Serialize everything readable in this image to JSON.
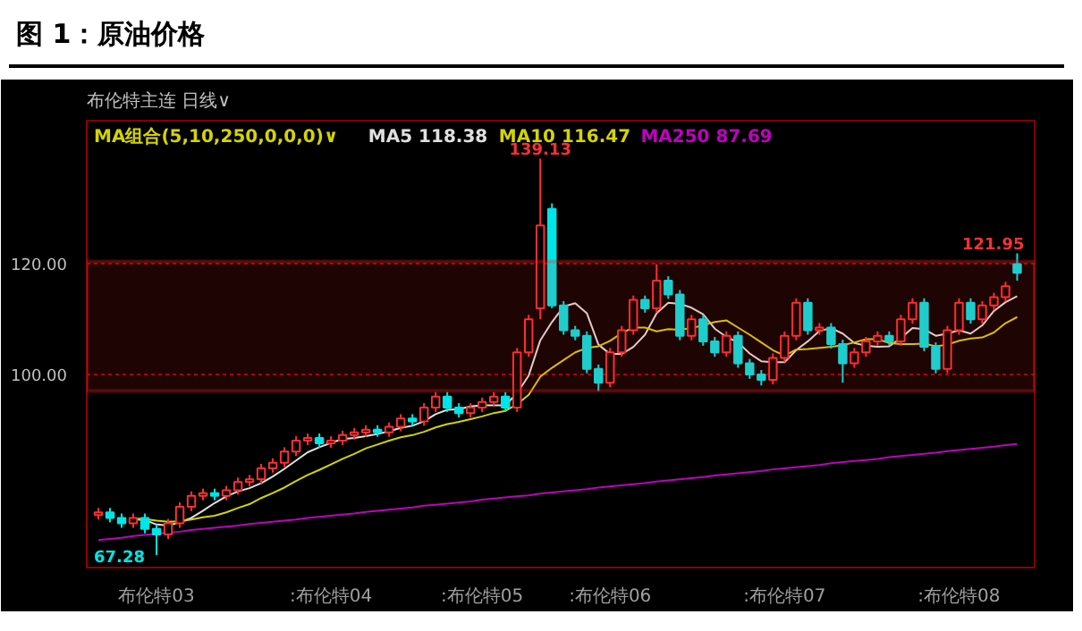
{
  "chart_data": {
    "type": "candlestick",
    "title": "图 1：原油价格",
    "subtitle": "布伦特主连 日线∨",
    "legend_title": "MA组合(5,10,250,0,0,0)∨",
    "categories": [
      null,
      null,
      null,
      null,
      null,
      "布伦特03",
      null,
      null,
      null,
      null,
      null,
      null,
      null,
      null,
      null,
      null,
      null,
      null,
      null,
      null,
      ":布伦特04",
      null,
      null,
      null,
      null,
      null,
      null,
      null,
      null,
      null,
      null,
      null,
      null,
      ":布伦特05",
      null,
      null,
      null,
      null,
      null,
      null,
      null,
      null,
      null,
      null,
      ":布伦特06",
      null,
      null,
      null,
      null,
      null,
      null,
      null,
      null,
      null,
      null,
      null,
      null,
      null,
      null,
      ":布伦特07",
      null,
      null,
      null,
      null,
      null,
      null,
      null,
      null,
      null,
      null,
      null,
      null,
      null,
      null,
      ":布伦特08",
      null,
      null,
      null,
      null,
      null
    ],
    "ohlc": [
      [
        74.5,
        75.8,
        73.7,
        75
      ],
      [
        75,
        75.8,
        73.2,
        74
      ],
      [
        74,
        74.8,
        72.2,
        73
      ],
      [
        73,
        74.8,
        72.2,
        74
      ],
      [
        74,
        74.8,
        71.2,
        72
      ],
      [
        72,
        72.8,
        67.28,
        71
      ],
      [
        71,
        73.8,
        70.2,
        73
      ],
      [
        73,
        76.8,
        72.2,
        76
      ],
      [
        76,
        78.8,
        75.2,
        78
      ],
      [
        78,
        79.3,
        77.2,
        78.5
      ],
      [
        78.5,
        79.3,
        77.2,
        78
      ],
      [
        78,
        79.8,
        77.2,
        79
      ],
      [
        79,
        81.3,
        78.2,
        80.5
      ],
      [
        80.5,
        81.8,
        79.7,
        81
      ],
      [
        81,
        83.8,
        80.2,
        83
      ],
      [
        83,
        84.8,
        82.2,
        84
      ],
      [
        84,
        86.8,
        83.2,
        86
      ],
      [
        86,
        88.8,
        85.2,
        88
      ],
      [
        88,
        89.3,
        87.2,
        88.5
      ],
      [
        88.5,
        89.3,
        86.7,
        87.5
      ],
      [
        87.5,
        88.8,
        86.7,
        88
      ],
      [
        88,
        89.8,
        87.2,
        89
      ],
      [
        89,
        90.3,
        88.2,
        89.5
      ],
      [
        89.5,
        90.8,
        88.7,
        90
      ],
      [
        90,
        90.8,
        88.7,
        89.5
      ],
      [
        89.5,
        91.3,
        88.7,
        90.5
      ],
      [
        90.5,
        92.8,
        89.7,
        92
      ],
      [
        92,
        92.8,
        90.7,
        91.5
      ],
      [
        91.5,
        94.8,
        90.7,
        94
      ],
      [
        94,
        96.8,
        93.2,
        96
      ],
      [
        96,
        96.8,
        93.2,
        94
      ],
      [
        94,
        94.8,
        92.2,
        93
      ],
      [
        93,
        94.8,
        92.2,
        94
      ],
      [
        94,
        95.8,
        93.2,
        95
      ],
      [
        95,
        96.8,
        94.2,
        96
      ],
      [
        96,
        96.8,
        93.2,
        94
      ],
      [
        94,
        104.8,
        93.2,
        104
      ],
      [
        104,
        110.8,
        103.2,
        110
      ],
      [
        112,
        139.13,
        110,
        127
      ],
      [
        130,
        131,
        112,
        112.5
      ],
      [
        112.5,
        113.3,
        107.2,
        108
      ],
      [
        108,
        108.8,
        106.2,
        107
      ],
      [
        107,
        107.8,
        100.2,
        101
      ],
      [
        101,
        101.8,
        97,
        98.5
      ],
      [
        98.5,
        104.8,
        97.7,
        104
      ],
      [
        104,
        108.8,
        103.2,
        108
      ],
      [
        108,
        114.3,
        107.2,
        113.5
      ],
      [
        113.5,
        114.3,
        111.2,
        112
      ],
      [
        112,
        120,
        111.2,
        117
      ],
      [
        117,
        117.8,
        113.7,
        114.5
      ],
      [
        114.5,
        115.3,
        106.2,
        107
      ],
      [
        107,
        110.8,
        106.2,
        110
      ],
      [
        110,
        110.8,
        105.2,
        106
      ],
      [
        106,
        106.8,
        103.2,
        104
      ],
      [
        104,
        107.8,
        103.2,
        107
      ],
      [
        107,
        107.8,
        101.2,
        102
      ],
      [
        102,
        102.8,
        99.2,
        100
      ],
      [
        100,
        100.8,
        98,
        99
      ],
      [
        99,
        103.8,
        98.2,
        103
      ],
      [
        103,
        107.8,
        102.2,
        107
      ],
      [
        107,
        113.8,
        106.2,
        113
      ],
      [
        113,
        113.8,
        107.2,
        108
      ],
      [
        108,
        109.3,
        107.2,
        108.5
      ],
      [
        108.5,
        109.3,
        104.7,
        105.5
      ],
      [
        105.5,
        106.3,
        98.5,
        102
      ],
      [
        102,
        104.8,
        101.2,
        104
      ],
      [
        104,
        106.8,
        103.2,
        106
      ],
      [
        106,
        107.8,
        105.2,
        107
      ],
      [
        107,
        107.8,
        105.2,
        106
      ],
      [
        106,
        110.8,
        105.2,
        110
      ],
      [
        110,
        113.8,
        109.2,
        113
      ],
      [
        113,
        113.8,
        104.2,
        105
      ],
      [
        105,
        105.8,
        100.2,
        101
      ],
      [
        101,
        108.8,
        100.2,
        108
      ],
      [
        108,
        113.8,
        107.2,
        113
      ],
      [
        113,
        113.8,
        109.2,
        110
      ],
      [
        110,
        113.3,
        109.2,
        112.5
      ],
      [
        112.5,
        114.8,
        111.7,
        114
      ],
      [
        114,
        116.8,
        113.2,
        116
      ],
      [
        120,
        121.95,
        117,
        118.4
      ]
    ],
    "series": [
      {
        "name": "MA5 118.38",
        "type": "line",
        "color": "#e0e0e0",
        "values": [
          null,
          null,
          null,
          73.8,
          73.6,
          72.8,
          72.6,
          73.2,
          74,
          75.3,
          76.7,
          77.9,
          78.8,
          79.4,
          80.3,
          81.5,
          82.9,
          84.4,
          85.9,
          86.8,
          87.6,
          88.3,
          88.5,
          88.8,
          89.2,
          89.7,
          90.3,
          90.7,
          91.5,
          92.8,
          93.6,
          93.7,
          94.2,
          94.4,
          94.4,
          94.4,
          96.6,
          99.8,
          106.2,
          109.5,
          112.3,
          112.9,
          111.1,
          105.4,
          103.7,
          103.7,
          105,
          107.2,
          111.1,
          113,
          112.8,
          112.1,
          110.9,
          108.3,
          106.8,
          105.8,
          103.8,
          102.4,
          102.2,
          102.2,
          104.4,
          106,
          107.9,
          108.4,
          107.4,
          105.7,
          105.2,
          105,
          105.1,
          106.6,
          108.4,
          108.2,
          107,
          107.4,
          108,
          107.4,
          108.9,
          111.5,
          113.1,
          114.2
        ]
      },
      {
        "name": "MA10 116.47",
        "type": "line",
        "color": "#d4d400",
        "values": [
          null,
          null,
          null,
          73.9,
          73.8,
          73.5,
          73.3,
          73.4,
          73.7,
          74.1,
          74.4,
          75,
          75.8,
          76.5,
          77.6,
          78.5,
          79.5,
          80.7,
          81.8,
          82.7,
          83.7,
          84.7,
          85.6,
          86.6,
          87.3,
          88,
          88.6,
          89,
          89.6,
          90.4,
          91,
          91.4,
          91.9,
          92.4,
          93,
          93.4,
          94.6,
          96.3,
          99.6,
          101.2,
          102.6,
          104,
          104.8,
          105.1,
          106.1,
          107.5,
          108.5,
          108.5,
          107.8,
          108.2,
          108.1,
          108.4,
          108.9,
          109.5,
          109.8,
          108.5,
          107.2,
          105.8,
          104.4,
          103.4,
          104.5,
          104.6,
          104.8,
          105,
          105.3,
          105.8,
          106.4,
          106.4,
          105.7,
          105.5,
          105.5,
          105.6,
          105.1,
          105.4,
          106.1,
          106.5,
          106.7,
          107.6,
          109.3,
          110.4
        ]
      },
      {
        "name": "MA250 87.69",
        "type": "line",
        "color": "#c000c0",
        "values": [
          70,
          70.2,
          70.4,
          70.7,
          70.9,
          71.1,
          71.3,
          71.5,
          71.8,
          72,
          72.2,
          72.4,
          72.6,
          72.9,
          73.1,
          73.3,
          73.5,
          73.7,
          74,
          74.2,
          74.4,
          74.6,
          74.8,
          75.1,
          75.3,
          75.5,
          75.7,
          75.9,
          76.2,
          76.4,
          76.6,
          76.8,
          77,
          77.3,
          77.5,
          77.7,
          77.9,
          78.1,
          78.4,
          78.6,
          78.8,
          79,
          79.2,
          79.5,
          79.7,
          79.9,
          80.1,
          80.3,
          80.6,
          80.8,
          81,
          81.2,
          81.4,
          81.7,
          81.9,
          82.1,
          82.3,
          82.5,
          82.8,
          83,
          83.2,
          83.4,
          83.6,
          83.9,
          84.1,
          84.3,
          84.5,
          84.7,
          85,
          85.2,
          85.4,
          85.6,
          85.8,
          86.1,
          86.3,
          86.5,
          86.7,
          86.9,
          87.2,
          87.4
        ]
      }
    ],
    "ylim": [
      65,
      146
    ],
    "yticks": [
      {
        "value": 120,
        "label": "120.00"
      },
      {
        "value": 100,
        "label": "100.00"
      }
    ],
    "grid": "y",
    "legend": "top left",
    "bands": [
      {
        "axis": "y",
        "from": 97,
        "to": 120.5,
        "color": "#ff2020"
      }
    ],
    "annotations": [
      {
        "text": "139.13",
        "y": 139.13
      },
      {
        "text": "121.95",
        "y": 121.95
      },
      "67.28"
    ]
  }
}
